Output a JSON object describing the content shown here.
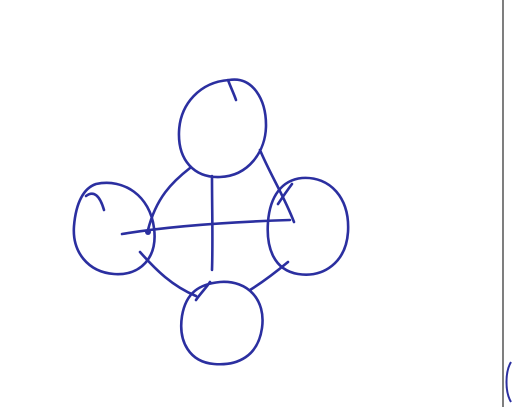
{
  "diagram": {
    "kind": "hand-drawn graph sketch",
    "ink_color": "#2b2fa0",
    "paper_color": "#ffffff",
    "node_count": 4,
    "edge_count": 6,
    "nodes": [
      {
        "id": "top",
        "label": ""
      },
      {
        "id": "left",
        "label": ""
      },
      {
        "id": "right",
        "label": ""
      },
      {
        "id": "bottom",
        "label": ""
      }
    ],
    "edges": [
      {
        "from": "left",
        "to": "right"
      },
      {
        "from": "top",
        "to": "bottom"
      },
      {
        "from": "top",
        "to": "left"
      },
      {
        "from": "top",
        "to": "right"
      },
      {
        "from": "left",
        "to": "bottom"
      },
      {
        "from": "right",
        "to": "bottom"
      }
    ]
  }
}
